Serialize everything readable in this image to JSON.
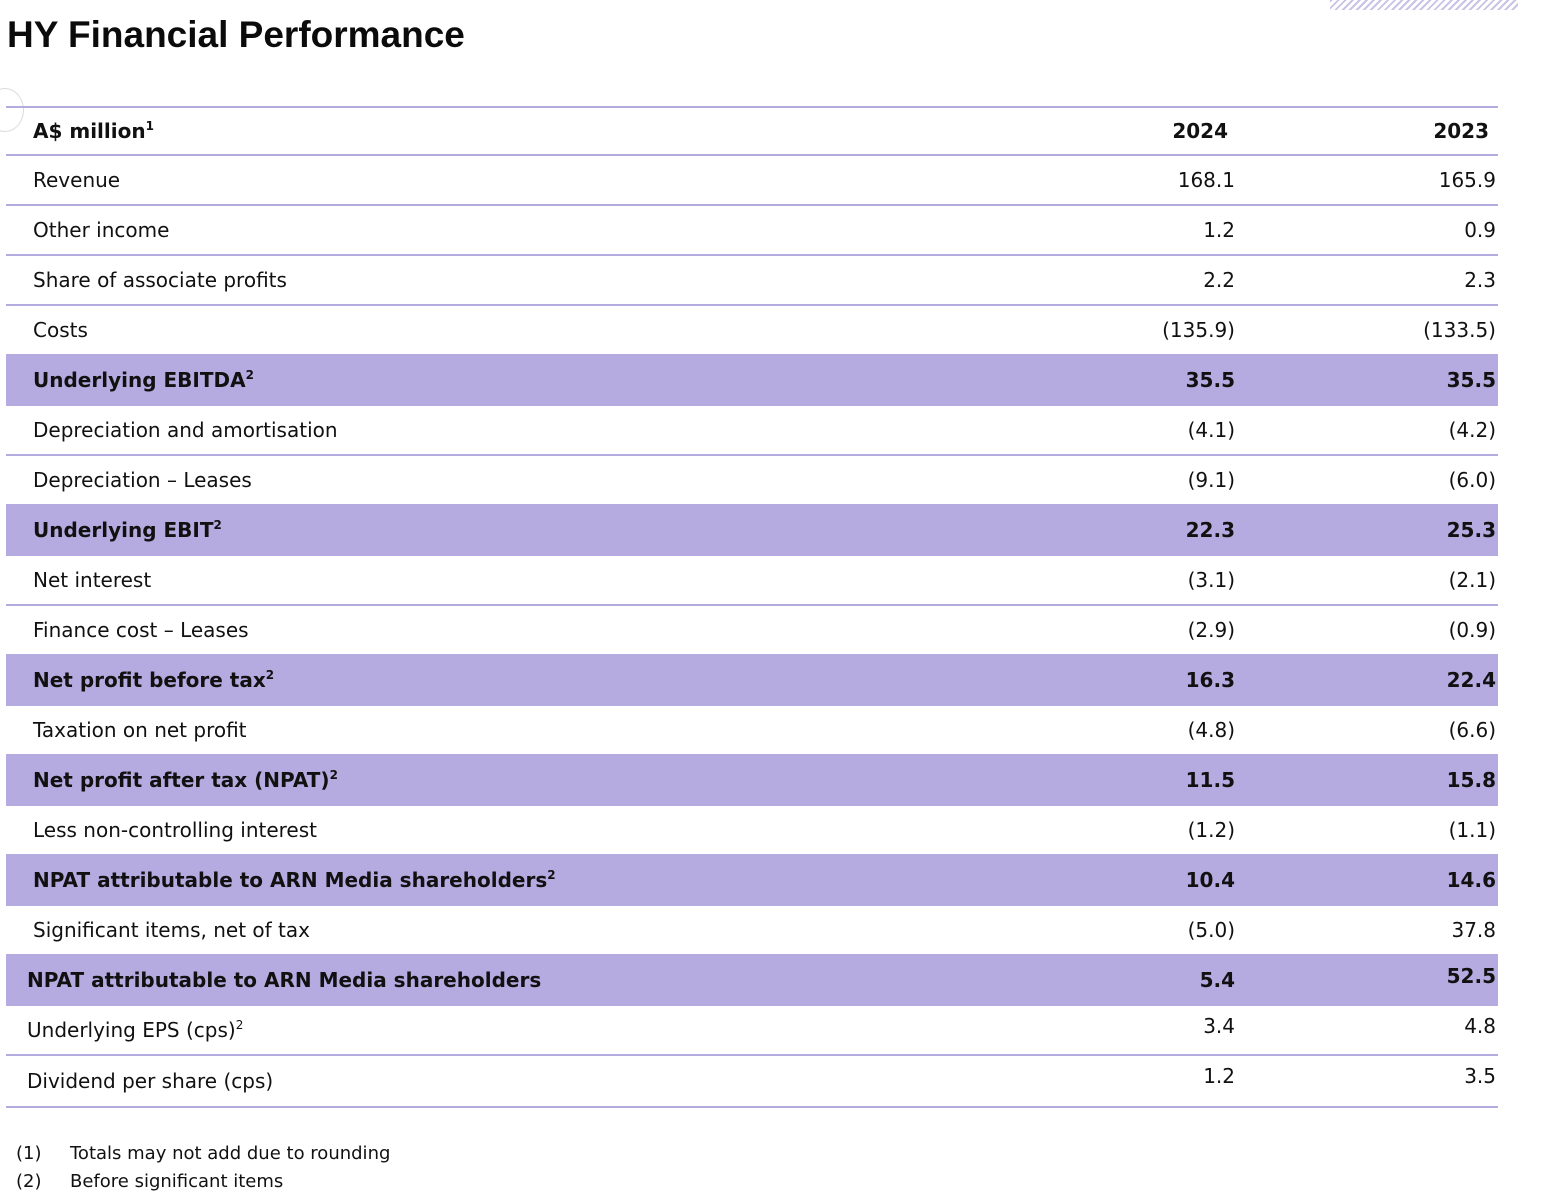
{
  "title": "HY Financial Performance",
  "header": {
    "label": "A$ million",
    "label_sup": "1",
    "col_2024": "2024",
    "col_2023": "2023"
  },
  "rows": [
    {
      "label": "Revenue",
      "sup": "",
      "v2024": "168.1",
      "v2023": "165.9",
      "highlight": false
    },
    {
      "label": "Other income",
      "sup": "",
      "v2024": "1.2",
      "v2023": "0.9",
      "highlight": false
    },
    {
      "label": "Share of associate profits",
      "sup": "",
      "v2024": "2.2",
      "v2023": "2.3",
      "highlight": false
    },
    {
      "label": "Costs",
      "sup": "",
      "v2024": "(135.9)",
      "v2023": "(133.5)",
      "highlight": false
    },
    {
      "label": "Underlying EBITDA",
      "sup": "2",
      "v2024": "35.5",
      "v2023": "35.5",
      "highlight": true
    },
    {
      "label": "Depreciation and amortisation",
      "sup": "",
      "v2024": "(4.1)",
      "v2023": "(4.2)",
      "highlight": false
    },
    {
      "label": "Depreciation – Leases",
      "sup": "",
      "v2024": "(9.1)",
      "v2023": "(6.0)",
      "highlight": false
    },
    {
      "label": "Underlying EBIT",
      "sup": "2",
      "v2024": "22.3",
      "v2023": "25.3",
      "highlight": true
    },
    {
      "label": "Net interest",
      "sup": "",
      "v2024": "(3.1)",
      "v2023": "(2.1)",
      "highlight": false
    },
    {
      "label": "Finance cost – Leases",
      "sup": "",
      "v2024": "(2.9)",
      "v2023": "(0.9)",
      "highlight": false
    },
    {
      "label": "Net profit before tax",
      "sup": "2",
      "v2024": "16.3",
      "v2023": "22.4",
      "highlight": true
    },
    {
      "label": "Taxation on net profit",
      "sup": "",
      "v2024": "(4.8)",
      "v2023": "(6.6)",
      "highlight": false
    },
    {
      "label": "Net profit after tax (NPAT)",
      "sup": "2",
      "v2024": "11.5",
      "v2023": "15.8",
      "highlight": true
    },
    {
      "label": "Less non-controlling interest",
      "sup": "",
      "v2024": "(1.2)",
      "v2023": "(1.1)",
      "highlight": false
    },
    {
      "label": "NPAT attributable to ARN Media shareholders",
      "sup": "2",
      "v2024": "10.4",
      "v2023": "14.6",
      "highlight": true
    },
    {
      "label": "Significant items, net of tax",
      "sup": "",
      "v2024": "(5.0)",
      "v2023": "37.8",
      "highlight": false
    },
    {
      "label": "NPAT attributable to ARN Media shareholders",
      "sup": "",
      "v2024": "5.4",
      "v2023": "52.5",
      "highlight": true,
      "shift": true,
      "up23": true
    },
    {
      "label": "Underlying EPS (cps)",
      "sup": "2",
      "v2024": "3.4",
      "v2023": "4.8",
      "highlight": false,
      "shift": true,
      "up24": true,
      "up23": true
    },
    {
      "label": "Dividend per share (cps)",
      "sup": "",
      "v2024": "1.2",
      "v2023": "3.5",
      "highlight": false,
      "shift": true,
      "up24": true,
      "up23": true
    }
  ],
  "notes": [
    {
      "num": "(1)",
      "text": "Totals may not add due to rounding"
    },
    {
      "num": "(2)",
      "text": "Before significant items"
    }
  ],
  "colors": {
    "highlight": "#b5abe0",
    "rule": "#b6abe0"
  }
}
